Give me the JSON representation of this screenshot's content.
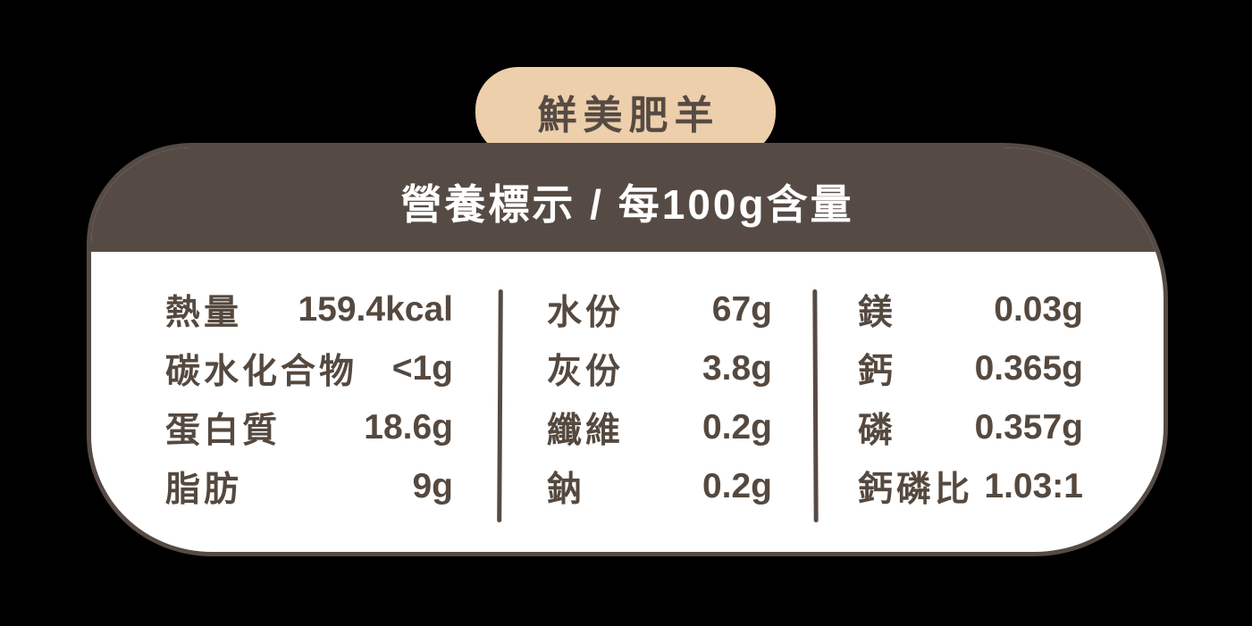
{
  "badge": {
    "label": "鮮美肥羊"
  },
  "header": {
    "title": "營養標示 / 每100g含量"
  },
  "table": {
    "columns": [
      {
        "rows": [
          {
            "label": "熱量",
            "value": "159.4kcal"
          },
          {
            "label": "碳水化合物",
            "value": "<1g"
          },
          {
            "label": "蛋白質",
            "value": "18.6g"
          },
          {
            "label": "脂肪",
            "value": "9g"
          }
        ]
      },
      {
        "rows": [
          {
            "label": "水份",
            "value": "67g"
          },
          {
            "label": "灰份",
            "value": "3.8g"
          },
          {
            "label": "纖維",
            "value": "0.2g"
          },
          {
            "label": "鈉",
            "value": "0.2g"
          }
        ]
      },
      {
        "rows": [
          {
            "label": "鎂",
            "value": "0.03g"
          },
          {
            "label": "鈣",
            "value": "0.365g"
          },
          {
            "label": "磷",
            "value": "0.357g"
          },
          {
            "label": "鈣磷比",
            "value": "1.03:1"
          }
        ]
      }
    ]
  },
  "colors": {
    "brown": "#564B44",
    "tan": "#EDCFAB",
    "text": "#55493F",
    "card_bg": "#FFFFFF",
    "header_text": "#FFFFFF",
    "background": "#000000"
  }
}
